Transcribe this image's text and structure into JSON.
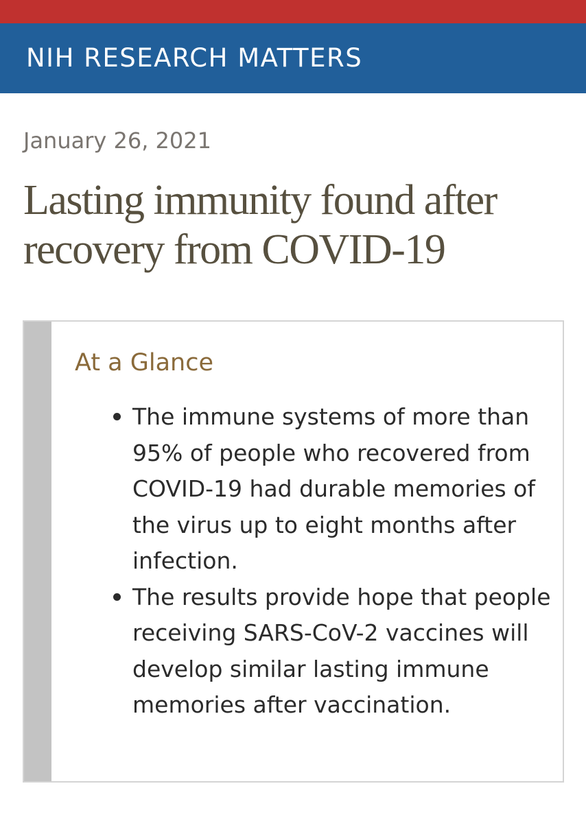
{
  "colors": {
    "top_stripe": "#c0312f",
    "banner": "#215f9a",
    "accent_gold": "#8a6a3a"
  },
  "banner": {
    "title": "NIH RESEARCH MATTERS"
  },
  "article": {
    "date": "January 26, 2021",
    "headline": "Lasting immunity found after recovery from COVID-19"
  },
  "glance": {
    "title": "At a Glance",
    "items": [
      "The immune systems of more than 95% of people who recovered from COVID-19 had durable memories of the virus up to eight months after infection.",
      "The results provide hope that people receiving SARS-CoV-2 vaccines will develop similar lasting immune memories after vaccination."
    ]
  }
}
